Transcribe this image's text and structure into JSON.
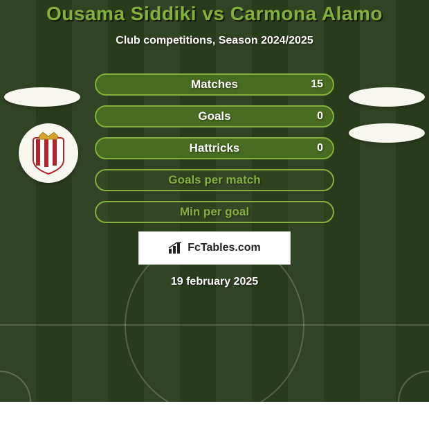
{
  "title": {
    "text": "Ousama Siddiki vs Carmona Alamo",
    "fontsize": 28,
    "color": "#84b03c"
  },
  "subtitle": {
    "text": "Club competitions, Season 2024/2025",
    "fontsize": 16
  },
  "background": {
    "base_color": "#2a3d1e",
    "line_color_rgba": "rgba(255,255,255,0.20)"
  },
  "stats": {
    "label_fontsize": 17,
    "value_fontsize": 16,
    "row_border_color": "#84b03c",
    "row_fill_color": "#476b21",
    "row_neutral_fill": "rgba(60,80,40,0.35)",
    "rows": [
      {
        "label": "Matches",
        "right_value": "15",
        "filled": true
      },
      {
        "label": "Goals",
        "right_value": "0",
        "filled": true
      },
      {
        "label": "Hattricks",
        "right_value": "0",
        "filled": true
      },
      {
        "label": "Goals per match",
        "right_value": "",
        "filled": false
      },
      {
        "label": "Min per goal",
        "right_value": "",
        "filled": false
      }
    ]
  },
  "brand": {
    "text": "FcTables.com",
    "fontsize": 16,
    "icon_name": "bar-chart-icon"
  },
  "datestamp": {
    "text": "19 february 2025",
    "fontsize": 16
  },
  "crest": {
    "stripe_colors": [
      "#b2242b",
      "#ffffff"
    ],
    "crown_color": "#d8a52a"
  },
  "decor_ellipses": {
    "color": "#f7f7ef"
  }
}
